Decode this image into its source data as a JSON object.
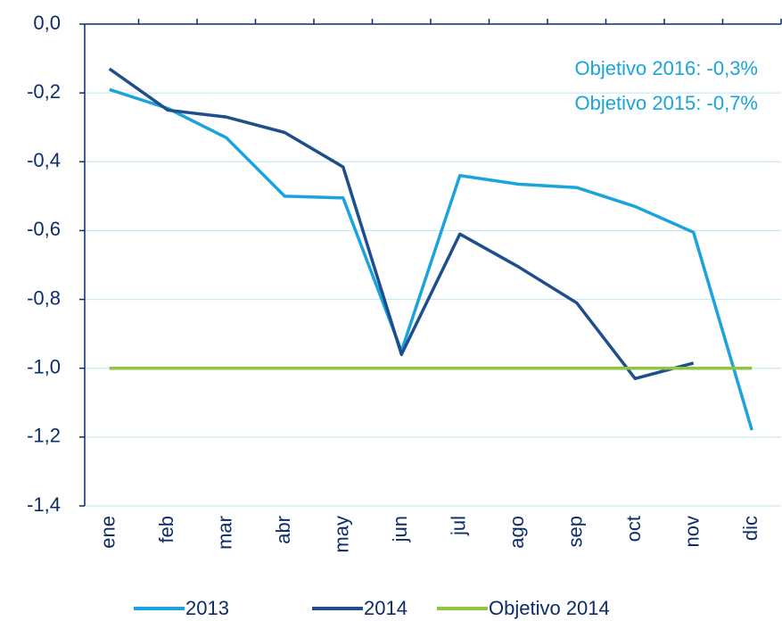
{
  "chart_data": {
    "type": "line",
    "categories": [
      "ene",
      "feb",
      "mar",
      "abr",
      "may",
      "jun",
      "jul",
      "ago",
      "sep",
      "oct",
      "nov",
      "dic"
    ],
    "series": [
      {
        "name": "2013",
        "color": "#1aa3dd",
        "values": [
          -0.19,
          -0.245,
          -0.33,
          -0.5,
          -0.505,
          -0.95,
          -0.44,
          -0.465,
          -0.475,
          -0.53,
          -0.605,
          -1.18
        ]
      },
      {
        "name": "2014",
        "color": "#1f4e8c",
        "values": [
          -0.13,
          -0.25,
          -0.27,
          -0.315,
          -0.415,
          -0.96,
          -0.61,
          -0.705,
          -0.81,
          -1.03,
          -0.985,
          null
        ]
      },
      {
        "name": "Objetivo 2014",
        "color": "#8dc63f",
        "values": [
          -1.0,
          -1.0,
          -1.0,
          -1.0,
          -1.0,
          -1.0,
          -1.0,
          -1.0,
          -1.0,
          -1.0,
          -1.0,
          -1.0
        ]
      }
    ],
    "annotations": [
      "Objetivo 2016: -0,3%",
      "Objetivo 2015: -0,7%"
    ],
    "ylim": [
      -1.4,
      0
    ],
    "yticks": [
      {
        "value": 0,
        "label": "0,0"
      },
      {
        "value": -0.2,
        "label": "-0,2"
      },
      {
        "value": -0.4,
        "label": "-0,4"
      },
      {
        "value": -0.6,
        "label": "-0,6"
      },
      {
        "value": -0.8,
        "label": "-0,8"
      },
      {
        "value": -1.0,
        "label": "-1,0"
      },
      {
        "value": -1.2,
        "label": "-1,2"
      },
      {
        "value": -1.4,
        "label": "-1,4"
      }
    ],
    "grid": true
  }
}
